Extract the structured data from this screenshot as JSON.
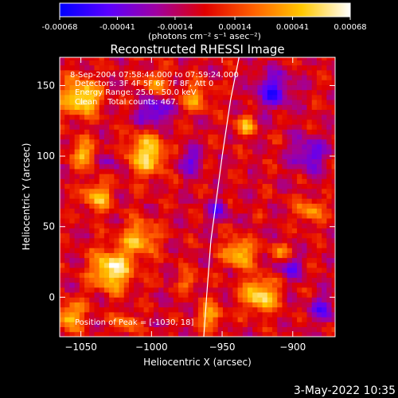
{
  "chart_data": {
    "type": "heatmap",
    "title": "Reconstructed RHESSI Image",
    "xlabel": "Heliocentric X (arcsec)",
    "ylabel": "Heliocentric Y (arcsec)",
    "xlim": [
      -1065,
      -870
    ],
    "ylim": [
      -28,
      170
    ],
    "x_ticks": [
      -1050,
      -1000,
      -950,
      -900
    ],
    "y_ticks": [
      0,
      50,
      100,
      150
    ],
    "colorbar": {
      "min": -0.00068,
      "max": 0.00068,
      "tick_values": [
        -0.00068,
        -0.00041,
        -0.00014,
        0.00014,
        0.00041,
        0.00068
      ],
      "tick_labels": [
        "-0.00068",
        "-0.00041",
        "-0.00014",
        "0.00014",
        "0.00041",
        "0.00068"
      ],
      "units": "(photons cm⁻² s⁻¹ asec⁻²)",
      "stops": [
        "#0000ff",
        "#5a00ff",
        "#a000a0",
        "#e00000",
        "#ff6000",
        "#ffc800",
        "#ffffff"
      ]
    },
    "annotations": [
      "8-Sep-2004 07:58:44.000 to 07:59:24.000",
      "Detectors: 3F 4F 5F 6F 7F 8F, Att 0",
      "Energy Range: 25.0 - 50.0 keV",
      "Clean    Total counts: 467."
    ],
    "peak_label": "Position of Peak = [-1030, 18]",
    "limb": [
      [
        -938,
        170
      ],
      [
        -944,
        140
      ],
      [
        -950,
        100
      ],
      [
        -954,
        70
      ],
      [
        -958,
        40
      ],
      [
        -961,
        0
      ],
      [
        -963,
        -28
      ]
    ],
    "blobs": [
      {
        "x": -1030,
        "y": 18,
        "r": 14,
        "v": 1.0
      },
      {
        "x": -1052,
        "y": 140,
        "r": 13,
        "v": 0.95
      },
      {
        "x": -1005,
        "y": 100,
        "r": 14,
        "v": 0.85
      },
      {
        "x": -1040,
        "y": 70,
        "r": 10,
        "v": 0.7
      },
      {
        "x": -1010,
        "y": 40,
        "r": 12,
        "v": 0.7
      },
      {
        "x": -1050,
        "y": 100,
        "r": 9,
        "v": 0.65
      },
      {
        "x": -940,
        "y": 30,
        "r": 10,
        "v": 0.8
      },
      {
        "x": -925,
        "y": 0,
        "r": 12,
        "v": 0.9
      },
      {
        "x": -935,
        "y": 120,
        "r": 7,
        "v": 0.6
      },
      {
        "x": -890,
        "y": 60,
        "r": 9,
        "v": 0.55
      },
      {
        "x": -970,
        "y": 140,
        "r": 10,
        "v": 0.55
      },
      {
        "x": -1060,
        "y": -15,
        "r": 10,
        "v": 0.75
      },
      {
        "x": -960,
        "y": -15,
        "r": 9,
        "v": 0.6
      },
      {
        "x": -1000,
        "y": 150,
        "r": 9,
        "v": 0.55
      },
      {
        "x": -910,
        "y": 30,
        "r": 7,
        "v": 0.5
      },
      {
        "x": -1020,
        "y": -20,
        "r": 8,
        "v": 0.5
      },
      {
        "x": -975,
        "y": 10,
        "r": 7,
        "v": 0.45
      },
      {
        "x": -1000,
        "y": 130,
        "r": 11,
        "v": -0.7
      },
      {
        "x": -915,
        "y": 145,
        "r": 13,
        "v": -0.65
      },
      {
        "x": -890,
        "y": 100,
        "r": 12,
        "v": -0.6
      },
      {
        "x": -905,
        "y": 20,
        "r": 9,
        "v": -0.5
      },
      {
        "x": -955,
        "y": 60,
        "r": 8,
        "v": -0.45
      },
      {
        "x": -975,
        "y": 95,
        "r": 9,
        "v": -0.5
      },
      {
        "x": -1030,
        "y": 95,
        "r": 8,
        "v": -0.35
      },
      {
        "x": -880,
        "y": -10,
        "r": 9,
        "v": -0.55
      }
    ]
  },
  "footer": {
    "date": "3-May-2022 10:35"
  }
}
